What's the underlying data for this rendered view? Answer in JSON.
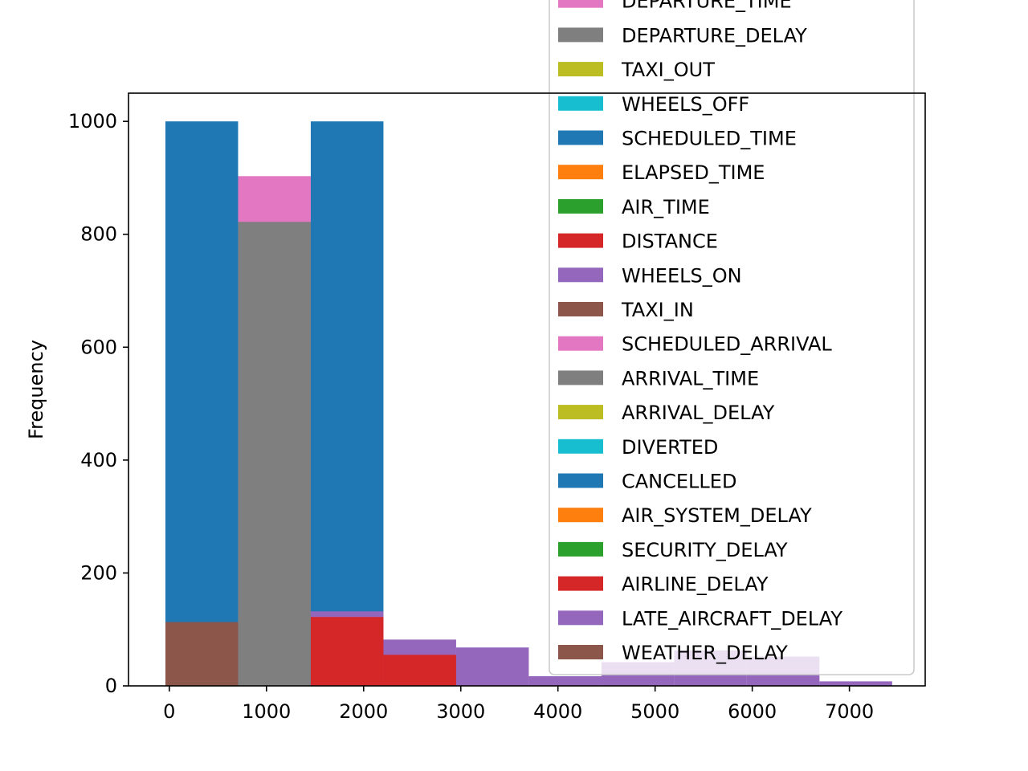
{
  "chart_data": {
    "type": "histogram",
    "title": "",
    "xlabel": "",
    "ylabel": "Frequency",
    "xlim": [
      -420,
      7780
    ],
    "ylim": [
      0,
      1050
    ],
    "xticks": [
      0,
      1000,
      2000,
      3000,
      4000,
      5000,
      6000,
      7000
    ],
    "yticks": [
      0,
      200,
      400,
      600,
      800,
      1000
    ],
    "bin_edges": [
      -40,
      708,
      1456,
      2204,
      2952,
      3700,
      4448,
      5196,
      5944,
      6692,
      7440
    ],
    "grid": false,
    "legend_position": "upper-right",
    "series": [
      {
        "name": "DEPARTURE_TIME",
        "color": "#e377c2",
        "counts": [
          0,
          903,
          0,
          0,
          0,
          0,
          0,
          0,
          0,
          0
        ]
      },
      {
        "name": "DEPARTURE_DELAY",
        "color": "#7f7f7f",
        "counts": [
          0,
          822,
          0,
          0,
          0,
          0,
          0,
          0,
          0,
          0
        ]
      },
      {
        "name": "TAXI_OUT",
        "color": "#bcbd22",
        "counts": [
          0,
          0,
          0,
          0,
          0,
          0,
          0,
          0,
          0,
          0
        ]
      },
      {
        "name": "WHEELS_OFF",
        "color": "#17becf",
        "counts": [
          0,
          0,
          0,
          0,
          0,
          0,
          0,
          0,
          0,
          0
        ]
      },
      {
        "name": "SCHEDULED_TIME",
        "color": "#1f77b4",
        "counts": [
          1000,
          0,
          1000,
          0,
          0,
          0,
          0,
          0,
          0,
          0
        ]
      },
      {
        "name": "ELAPSED_TIME",
        "color": "#ff7f0e",
        "counts": [
          0,
          0,
          0,
          0,
          0,
          0,
          0,
          0,
          0,
          0
        ]
      },
      {
        "name": "AIR_TIME",
        "color": "#2ca02c",
        "counts": [
          0,
          0,
          0,
          0,
          0,
          0,
          0,
          0,
          0,
          0
        ]
      },
      {
        "name": "DISTANCE",
        "color": "#d62728",
        "counts": [
          0,
          0,
          0,
          0,
          0,
          0,
          0,
          0,
          0,
          0
        ]
      },
      {
        "name": "WHEELS_ON",
        "color": "#9467bd",
        "counts": [
          0,
          0,
          132,
          82,
          68,
          17,
          0,
          0,
          0,
          8
        ]
      },
      {
        "name": "TAXI_IN",
        "color": "#8c564b",
        "counts": [
          113,
          0,
          0,
          0,
          0,
          0,
          0,
          0,
          0,
          0
        ]
      },
      {
        "name": "SCHEDULED_ARRIVAL",
        "color": "#e377c2",
        "counts": [
          0,
          0,
          0,
          0,
          0,
          0,
          0,
          0,
          0,
          0
        ]
      },
      {
        "name": "ARRIVAL_TIME",
        "color": "#7f7f7f",
        "counts": [
          0,
          0,
          12,
          0,
          0,
          0,
          0,
          0,
          0,
          0
        ]
      },
      {
        "name": "ARRIVAL_DELAY",
        "color": "#bcbd22",
        "counts": [
          0,
          0,
          0,
          0,
          0,
          0,
          0,
          0,
          0,
          0
        ]
      },
      {
        "name": "DIVERTED",
        "color": "#17becf",
        "counts": [
          0,
          0,
          0,
          0,
          0,
          0,
          0,
          0,
          0,
          0
        ]
      },
      {
        "name": "CANCELLED",
        "color": "#1f77b4",
        "counts": [
          0,
          0,
          0,
          0,
          0,
          0,
          0,
          0,
          0,
          0
        ]
      },
      {
        "name": "AIR_SYSTEM_DELAY",
        "color": "#ff7f0e",
        "counts": [
          0,
          0,
          0,
          0,
          0,
          0,
          0,
          0,
          0,
          0
        ]
      },
      {
        "name": "SECURITY_DELAY",
        "color": "#2ca02c",
        "counts": [
          0,
          0,
          0,
          0,
          0,
          0,
          0,
          0,
          0,
          0
        ]
      },
      {
        "name": "AIRLINE_DELAY",
        "color": "#d62728",
        "counts": [
          0,
          0,
          122,
          55,
          0,
          0,
          0,
          0,
          0,
          0
        ]
      },
      {
        "name": "LATE_AIRCRAFT_DELAY",
        "color": "#9467bd",
        "counts": [
          0,
          0,
          0,
          0,
          0,
          17,
          42,
          63,
          52,
          0
        ]
      },
      {
        "name": "WEATHER_DELAY",
        "color": "#8c564b",
        "counts": [
          0,
          0,
          0,
          0,
          0,
          0,
          0,
          0,
          0,
          0
        ]
      }
    ],
    "legend": {
      "entries": [
        {
          "label": "DEPARTURE_TIME",
          "color": "#e377c2"
        },
        {
          "label": "DEPARTURE_DELAY",
          "color": "#7f7f7f"
        },
        {
          "label": "TAXI_OUT",
          "color": "#bcbd22"
        },
        {
          "label": "WHEELS_OFF",
          "color": "#17becf"
        },
        {
          "label": "SCHEDULED_TIME",
          "color": "#1f77b4"
        },
        {
          "label": "ELAPSED_TIME",
          "color": "#ff7f0e"
        },
        {
          "label": "AIR_TIME",
          "color": "#2ca02c"
        },
        {
          "label": "DISTANCE",
          "color": "#d62728"
        },
        {
          "label": "WHEELS_ON",
          "color": "#9467bd"
        },
        {
          "label": "TAXI_IN",
          "color": "#8c564b"
        },
        {
          "label": "SCHEDULED_ARRIVAL",
          "color": "#e377c2"
        },
        {
          "label": "ARRIVAL_TIME",
          "color": "#7f7f7f"
        },
        {
          "label": "ARRIVAL_DELAY",
          "color": "#bcbd22"
        },
        {
          "label": "DIVERTED",
          "color": "#17becf"
        },
        {
          "label": "CANCELLED",
          "color": "#1f77b4"
        },
        {
          "label": "AIR_SYSTEM_DELAY",
          "color": "#ff7f0e"
        },
        {
          "label": "SECURITY_DELAY",
          "color": "#2ca02c"
        },
        {
          "label": "AIRLINE_DELAY",
          "color": "#d62728"
        },
        {
          "label": "LATE_AIRCRAFT_DELAY",
          "color": "#9467bd"
        },
        {
          "label": "WEATHER_DELAY",
          "color": "#8c564b"
        }
      ]
    }
  }
}
